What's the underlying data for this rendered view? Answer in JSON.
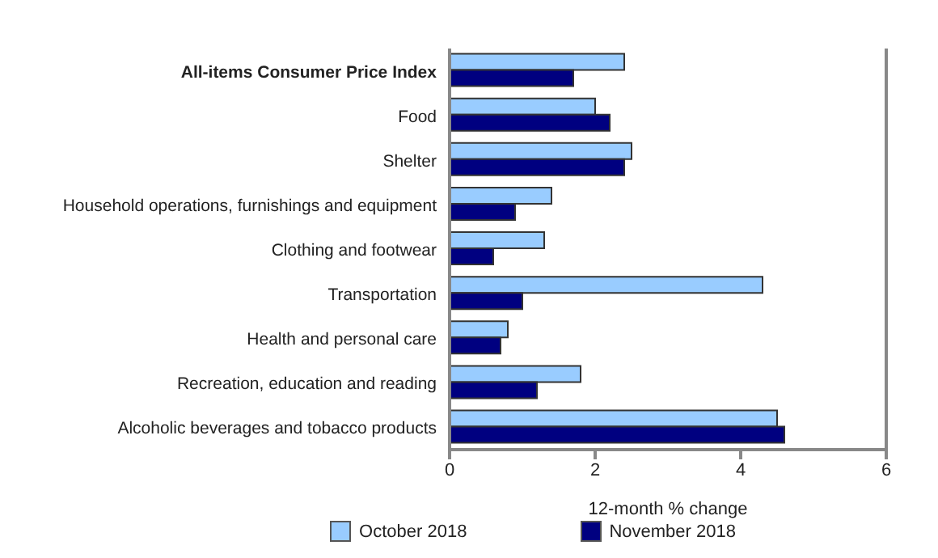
{
  "chart_data": {
    "type": "bar",
    "orientation": "horizontal",
    "xlabel": "12-month % change",
    "categories": [
      "All-items Consumer Price Index",
      "Food",
      "Shelter",
      "Household operations, furnishings and equipment",
      "Clothing and footwear",
      "Transportation",
      "Health and personal care",
      "Recreation, education and reading",
      "Alcoholic beverages and tobacco products"
    ],
    "series": [
      {
        "name": "October 2018",
        "color": "#99ccff",
        "values": [
          2.4,
          2.0,
          2.5,
          1.4,
          1.3,
          4.3,
          0.8,
          1.8,
          4.5
        ]
      },
      {
        "name": "November 2018",
        "color": "#000080",
        "values": [
          1.7,
          2.2,
          2.4,
          0.9,
          0.6,
          1.0,
          0.7,
          1.2,
          4.6
        ]
      }
    ],
    "xlim": [
      0,
      6
    ],
    "xticks": [
      0,
      2,
      4,
      6
    ],
    "grid": false,
    "legend": "bottom"
  }
}
